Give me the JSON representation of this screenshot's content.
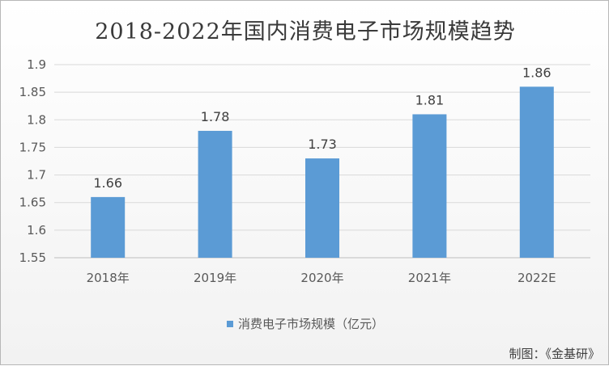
{
  "chart_data": {
    "type": "bar",
    "title": "2018-2022年国内消费电子市场规模趋势",
    "categories": [
      "2018年",
      "2019年",
      "2020年",
      "2021年",
      "2022E"
    ],
    "series": [
      {
        "name": "消费电子市场规模（亿元）",
        "values": [
          1.66,
          1.78,
          1.73,
          1.81,
          1.86
        ]
      }
    ],
    "data_labels": [
      "1.66",
      "1.78",
      "1.73",
      "1.81",
      "1.86"
    ],
    "yticks": [
      "1.55",
      "1.6",
      "1.65",
      "1.7",
      "1.75",
      "1.8",
      "1.85",
      "1.9"
    ],
    "ylim": [
      1.55,
      1.9
    ],
    "grid": true,
    "legend_position": "bottom",
    "bar_color": "#5b9bd5"
  },
  "credit": "制图：《金基研》"
}
